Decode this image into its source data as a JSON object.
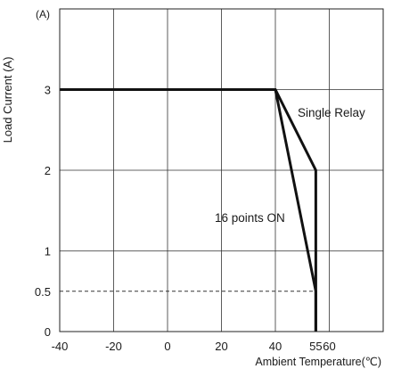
{
  "chart_data": {
    "type": "line",
    "xlabel": "Ambient Temperature(℃)",
    "ylabel": "Load Current (A)",
    "yunit": "(A)",
    "xlim": [
      -40,
      80
    ],
    "ylim": [
      0,
      4
    ],
    "x_ticks": [
      -40,
      -20,
      0,
      20,
      40,
      55,
      60
    ],
    "x_tick_labels": [
      "-40",
      "-20",
      "0",
      "20",
      "40",
      "55",
      "60"
    ],
    "x_gridlines": [
      -40,
      -20,
      0,
      20,
      40,
      60,
      80
    ],
    "y_ticks": [
      0,
      0.5,
      1,
      2,
      3
    ],
    "y_tick_labels": [
      "0",
      "0.5",
      "1",
      "2",
      "3"
    ],
    "y_gridlines": [
      0,
      1,
      2,
      3,
      4
    ],
    "grid": true,
    "series": [
      {
        "name": "Single Relay",
        "x": [
          -40,
          40,
          55,
          55
        ],
        "y": [
          3,
          3,
          2,
          0
        ]
      },
      {
        "name": "16 points ON",
        "x": [
          40,
          55,
          55
        ],
        "y": [
          3,
          0.5,
          0
        ]
      }
    ],
    "reference_lines": [
      {
        "x": [
          -40,
          55
        ],
        "y": [
          0.5,
          0.5
        ],
        "style": "dashed"
      }
    ],
    "annotations": [
      {
        "text": "Single Relay",
        "target_series": "Single Relay"
      },
      {
        "text": "16 points ON",
        "target_series": "16 points ON"
      }
    ]
  }
}
